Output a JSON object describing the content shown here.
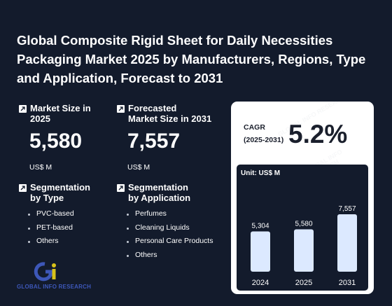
{
  "title": "Global Composite Rigid Sheet for Daily Necessities Packaging Market 2025 by Manufacturers, Regions, Type and Application, Forecast to 2031",
  "market_size": {
    "label_line1": "Market Size in",
    "label_line2": "2025",
    "value": "5,580",
    "unit": "US$ M"
  },
  "forecast": {
    "label_line1": "Forecasted",
    "label_line2": "Market Size in 2031",
    "value": "7,557",
    "unit": "US$ M"
  },
  "segment_type": {
    "label_line1": "Segmentation",
    "label_line2": "by Type",
    "items": [
      "PVC-based",
      "PET-based",
      "Others"
    ]
  },
  "segment_application": {
    "label_line1": "Segmentation",
    "label_line2": "by Application",
    "items": [
      "Perfumes",
      "Cleaning Liquids",
      "Personal Care Products",
      "Others"
    ]
  },
  "cagr": {
    "label_line1": "CAGR",
    "label_line2": "(2025-2031)",
    "value": "5.2%"
  },
  "logo": {
    "text": "GLOBAL INFO RESEARCH"
  },
  "colors": {
    "background": "#131b2c",
    "bar": "#dce9ff",
    "card": "#ffffff",
    "logo_blue": "#3d57b8",
    "logo_yellow": "#d8c21a"
  },
  "chart_data": {
    "type": "bar",
    "unit_label": "Unit: US$ M",
    "categories": [
      "2024",
      "2025",
      "2031"
    ],
    "values": [
      5304,
      5580,
      7557
    ],
    "value_labels": [
      "5,304",
      "5,580",
      "7,557"
    ],
    "ylim": [
      0,
      8000
    ],
    "grid": false,
    "legend": "none"
  }
}
